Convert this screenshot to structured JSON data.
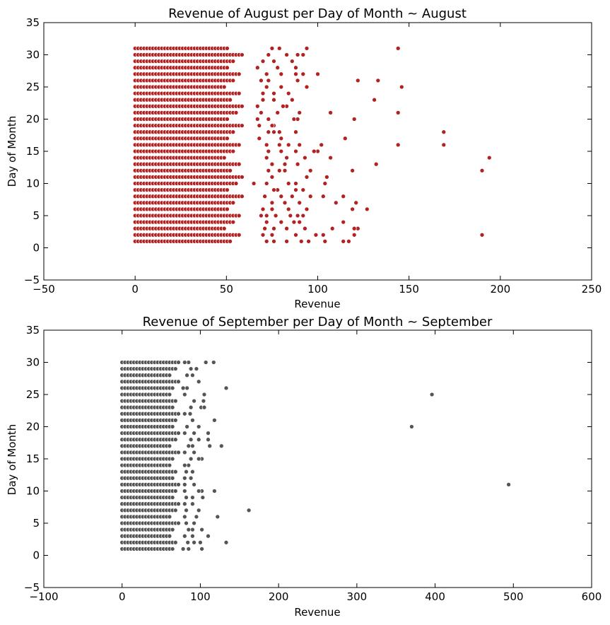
{
  "chart_data": [
    {
      "type": "scatter",
      "title": "Revenue of August per Day of Month ~ August",
      "xlabel": "Revenue",
      "ylabel": "Day of Month",
      "xlim": [
        -50,
        250
      ],
      "ylim": [
        -5,
        35
      ],
      "xticks": [
        "−50",
        "0",
        "50",
        "100",
        "150",
        "200",
        "250"
      ],
      "yticks": [
        "−5",
        "0",
        "5",
        "10",
        "15",
        "20",
        "25",
        "30",
        "35"
      ],
      "marker_color": "#b22222",
      "grid": false,
      "legend": "none",
      "dense_block": {
        "x_range": [
          0,
          60
        ],
        "days": [
          1,
          31
        ]
      },
      "points": [
        [
          144,
          31
        ],
        [
          94,
          31
        ],
        [
          79,
          31
        ],
        [
          75,
          31
        ],
        [
          73,
          30
        ],
        [
          83,
          30
        ],
        [
          89,
          30
        ],
        [
          92,
          30
        ],
        [
          86,
          29
        ],
        [
          70,
          29
        ],
        [
          76,
          29
        ],
        [
          78,
          28
        ],
        [
          88,
          28
        ],
        [
          67,
          28
        ],
        [
          100,
          27
        ],
        [
          92,
          27
        ],
        [
          88,
          27
        ],
        [
          80,
          27
        ],
        [
          72,
          27
        ],
        [
          122,
          26
        ],
        [
          133,
          26
        ],
        [
          89,
          26
        ],
        [
          73,
          26
        ],
        [
          69,
          26
        ],
        [
          146,
          25
        ],
        [
          94,
          25
        ],
        [
          72,
          25
        ],
        [
          80,
          25
        ],
        [
          84,
          24
        ],
        [
          76,
          24
        ],
        [
          70,
          24
        ],
        [
          131,
          23
        ],
        [
          86,
          23
        ],
        [
          76,
          23
        ],
        [
          70,
          23
        ],
        [
          83,
          22
        ],
        [
          81,
          22
        ],
        [
          67,
          22
        ],
        [
          144,
          21
        ],
        [
          107,
          21
        ],
        [
          90,
          21
        ],
        [
          78,
          21
        ],
        [
          69,
          21
        ],
        [
          120,
          20
        ],
        [
          89,
          20
        ],
        [
          87,
          20
        ],
        [
          73,
          20
        ],
        [
          67,
          20
        ],
        [
          76,
          19
        ],
        [
          75,
          19
        ],
        [
          68,
          19
        ],
        [
          169,
          18
        ],
        [
          88,
          18
        ],
        [
          76,
          18
        ],
        [
          79,
          18
        ],
        [
          73,
          18
        ],
        [
          115,
          17
        ],
        [
          80,
          17
        ],
        [
          68,
          17
        ],
        [
          144,
          16
        ],
        [
          169,
          16
        ],
        [
          102,
          16
        ],
        [
          84,
          16
        ],
        [
          79,
          16
        ],
        [
          90,
          16
        ],
        [
          72,
          16
        ],
        [
          100,
          15
        ],
        [
          98,
          15
        ],
        [
          88,
          15
        ],
        [
          80,
          15
        ],
        [
          73,
          15
        ],
        [
          194,
          14
        ],
        [
          107,
          14
        ],
        [
          93,
          14
        ],
        [
          83,
          14
        ],
        [
          72,
          14
        ],
        [
          132,
          13
        ],
        [
          89,
          13
        ],
        [
          82,
          13
        ],
        [
          75,
          13
        ],
        [
          190,
          12
        ],
        [
          119,
          12
        ],
        [
          96,
          12
        ],
        [
          82,
          12
        ],
        [
          79,
          12
        ],
        [
          73,
          12
        ],
        [
          105,
          11
        ],
        [
          94,
          11
        ],
        [
          75,
          11
        ],
        [
          104,
          10
        ],
        [
          88,
          10
        ],
        [
          84,
          10
        ],
        [
          72,
          10
        ],
        [
          65,
          10
        ],
        [
          92,
          9
        ],
        [
          88,
          9
        ],
        [
          78,
          9
        ],
        [
          76,
          9
        ],
        [
          114,
          8
        ],
        [
          103,
          8
        ],
        [
          96,
          8
        ],
        [
          86,
          8
        ],
        [
          80,
          8
        ],
        [
          71,
          8
        ],
        [
          121,
          7
        ],
        [
          110,
          7
        ],
        [
          90,
          7
        ],
        [
          82,
          7
        ],
        [
          75,
          7
        ],
        [
          127,
          6
        ],
        [
          119,
          6
        ],
        [
          94,
          6
        ],
        [
          84,
          6
        ],
        [
          75,
          6
        ],
        [
          70,
          6
        ],
        [
          92,
          5
        ],
        [
          89,
          5
        ],
        [
          85,
          5
        ],
        [
          77,
          5
        ],
        [
          72,
          5
        ],
        [
          69,
          5
        ],
        [
          114,
          4
        ],
        [
          90,
          4
        ],
        [
          87,
          4
        ],
        [
          80,
          4
        ],
        [
          72,
          4
        ],
        [
          122,
          3
        ],
        [
          120,
          3
        ],
        [
          108,
          3
        ],
        [
          93,
          3
        ],
        [
          83,
          3
        ],
        [
          76,
          3
        ],
        [
          71,
          3
        ],
        [
          190,
          2
        ],
        [
          120,
          2
        ],
        [
          103,
          2
        ],
        [
          99,
          2
        ],
        [
          88,
          2
        ],
        [
          75,
          2
        ],
        [
          70,
          2
        ],
        [
          117,
          1
        ],
        [
          114,
          1
        ],
        [
          104,
          1
        ],
        [
          95,
          1
        ],
        [
          91,
          1
        ],
        [
          83,
          1
        ],
        [
          76,
          1
        ],
        [
          72,
          1
        ]
      ]
    },
    {
      "type": "scatter",
      "title": "Revenue of September per Day of Month ~ September",
      "xlabel": "Revenue",
      "ylabel": "Day of Month",
      "xlim": [
        -100,
        600
      ],
      "ylim": [
        -5,
        35
      ],
      "xticks": [
        "−100",
        "0",
        "100",
        "200",
        "300",
        "400",
        "500",
        "600"
      ],
      "yticks": [
        "−5",
        "0",
        "5",
        "10",
        "15",
        "20",
        "25",
        "30",
        "35"
      ],
      "marker_color": "#555555",
      "grid": false,
      "legend": "none",
      "dense_block": {
        "x_range": [
          0,
          75
        ],
        "days": [
          1,
          30
        ]
      },
      "points": [
        [
          117,
          30
        ],
        [
          107,
          30
        ],
        [
          85,
          30
        ],
        [
          80,
          30
        ],
        [
          95,
          29
        ],
        [
          88,
          29
        ],
        [
          90,
          28
        ],
        [
          83,
          28
        ],
        [
          98,
          27
        ],
        [
          72,
          27
        ],
        [
          133,
          26
        ],
        [
          83,
          26
        ],
        [
          78,
          26
        ],
        [
          396,
          25
        ],
        [
          105,
          25
        ],
        [
          80,
          25
        ],
        [
          104,
          24
        ],
        [
          92,
          24
        ],
        [
          101,
          23
        ],
        [
          105,
          23
        ],
        [
          88,
          23
        ],
        [
          87,
          22
        ],
        [
          80,
          22
        ],
        [
          118,
          21
        ],
        [
          90,
          21
        ],
        [
          370,
          20
        ],
        [
          98,
          20
        ],
        [
          83,
          20
        ],
        [
          110,
          19
        ],
        [
          92,
          19
        ],
        [
          80,
          19
        ],
        [
          110,
          18
        ],
        [
          98,
          18
        ],
        [
          88,
          18
        ],
        [
          127,
          17
        ],
        [
          112,
          17
        ],
        [
          90,
          17
        ],
        [
          85,
          17
        ],
        [
          92,
          16
        ],
        [
          80,
          16
        ],
        [
          102,
          15
        ],
        [
          98,
          15
        ],
        [
          88,
          15
        ],
        [
          85,
          14
        ],
        [
          80,
          14
        ],
        [
          90,
          13
        ],
        [
          82,
          13
        ],
        [
          88,
          12
        ],
        [
          80,
          12
        ],
        [
          494,
          11
        ],
        [
          92,
          11
        ],
        [
          80,
          11
        ],
        [
          118,
          10
        ],
        [
          102,
          10
        ],
        [
          98,
          10
        ],
        [
          80,
          10
        ],
        [
          103,
          9
        ],
        [
          90,
          9
        ],
        [
          82,
          9
        ],
        [
          90,
          8
        ],
        [
          80,
          8
        ],
        [
          162,
          7
        ],
        [
          98,
          7
        ],
        [
          82,
          7
        ],
        [
          122,
          6
        ],
        [
          95,
          6
        ],
        [
          80,
          6
        ],
        [
          92,
          5
        ],
        [
          82,
          5
        ],
        [
          102,
          4
        ],
        [
          90,
          4
        ],
        [
          85,
          4
        ],
        [
          110,
          3
        ],
        [
          90,
          3
        ],
        [
          80,
          3
        ],
        [
          133,
          2
        ],
        [
          100,
          2
        ],
        [
          92,
          2
        ],
        [
          84,
          2
        ],
        [
          102,
          1
        ],
        [
          85,
          1
        ],
        [
          78,
          1
        ]
      ]
    }
  ]
}
